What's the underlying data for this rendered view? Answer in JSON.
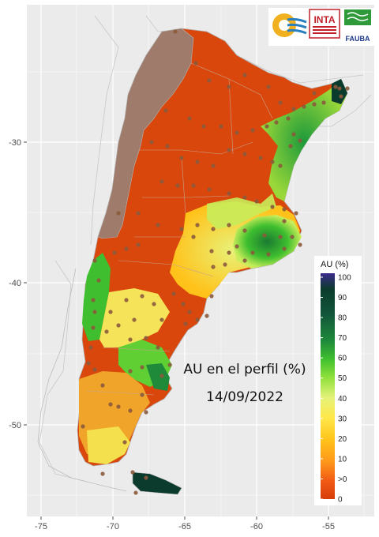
{
  "title": "AU en el perfil (%)",
  "date": "14/09/2022",
  "legend": {
    "title": "AU (%)",
    "labels": [
      "100",
      "90",
      "80",
      "70",
      "60",
      "50",
      "40",
      "30",
      "20",
      "10",
      ">0",
      "0"
    ],
    "colors": [
      "#3b2a8c",
      "#0b3b2c",
      "#12553a",
      "#1e8a3a",
      "#3fbf2f",
      "#8ee03a",
      "#e4f27a",
      "#ffe84a",
      "#ffc21a",
      "#ff9a1a",
      "#f05a14",
      "#d63d0a"
    ]
  },
  "axes": {
    "x_ticks": [
      "-75",
      "-70",
      "-65",
      "-60",
      "-55"
    ],
    "y_ticks": [
      "-30",
      "-40",
      "-50"
    ]
  },
  "logos": {
    "inta": "INTA",
    "fauba": "FAUBA"
  },
  "colors": {
    "panel_bg": "#ebebeb",
    "grid": "#ffffff",
    "no_data": "#9e7b6a",
    "station": "#8b5a3c",
    "outline": "#b5b5b5"
  }
}
